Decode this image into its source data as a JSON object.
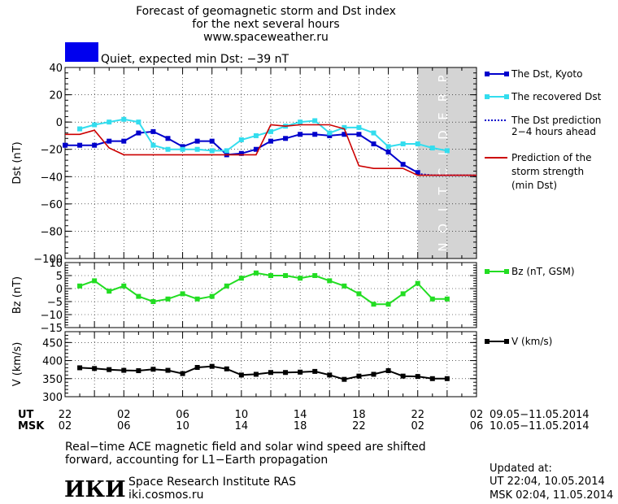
{
  "header": {
    "title_line1": "Forecast of geomagnetic storm and Dst index",
    "title_line2": "for the next several hours",
    "url": "www.spaceweather.ru",
    "status_text": "Quiet, expected min Dst: −39 nT",
    "status_color": "#0000ee"
  },
  "colors": {
    "dst_kyoto": "#0000cc",
    "dst_recovered": "#33ddee",
    "dst_prediction": "#0000cc",
    "storm_strength": "#cc0000",
    "bz": "#22dd22",
    "v": "#000000",
    "prediction_band": "#d4d4d4"
  },
  "prediction_band_label": "PREDICTION",
  "legend": {
    "dst_kyoto": "The Dst, Kyoto",
    "dst_recovered": "The recovered Dst",
    "dst_prediction_1": "The Dst prediction",
    "dst_prediction_2": "2−4 hours ahead",
    "storm_1": "Prediction of the",
    "storm_2": "storm strength",
    "storm_3": "(min Dst)",
    "bz": "Bz (nT, GSM)",
    "v": "V (km/s)"
  },
  "time_axis": {
    "ut_label": "UT",
    "msk_label": "MSK",
    "ut_ticks": [
      "22",
      "02",
      "06",
      "10",
      "14",
      "18",
      "22",
      "02"
    ],
    "msk_ticks": [
      "02",
      "06",
      "10",
      "14",
      "18",
      "22",
      "02",
      "06"
    ],
    "ut_range": "09.05−11.05.2014",
    "msk_range": "10.05−11.05.2014"
  },
  "chart_data": [
    {
      "type": "line",
      "ylabel": "Dst (nT)",
      "ylim": [
        -100,
        40
      ],
      "yticks": [
        "40",
        "20",
        "0",
        "−20",
        "−40",
        "−60",
        "−80",
        "−100"
      ],
      "xlim_hours": [
        0,
        28
      ],
      "prediction_from_hour": 24,
      "series": [
        {
          "name": "The Dst, Kyoto",
          "x": [
            0,
            1,
            2,
            3,
            4,
            5,
            6,
            7,
            8,
            9,
            10,
            11,
            12,
            13,
            14,
            15,
            16,
            17,
            18,
            19,
            20,
            21,
            22,
            23,
            24
          ],
          "y": [
            -17,
            -17,
            -17,
            -14,
            -14,
            -8,
            -7,
            -12,
            -18,
            -14,
            -14,
            -24,
            -23,
            -20,
            -14,
            -12,
            -9,
            -9,
            -10,
            -9,
            -9,
            -16,
            -22,
            -31,
            -37
          ]
        },
        {
          "name": "The recovered Dst",
          "x": [
            1,
            2,
            3,
            4,
            5,
            6,
            7,
            8,
            9,
            10,
            11,
            12,
            13,
            14,
            15,
            16,
            17,
            18,
            19,
            20,
            21,
            22,
            23,
            24,
            25,
            26
          ],
          "y": [
            -5,
            -2,
            0,
            2,
            0,
            -17,
            -20,
            -20,
            -20,
            -21,
            -21,
            -13,
            -10,
            -7,
            -3,
            0,
            1,
            -8,
            -4,
            -4,
            -8,
            -18,
            -16,
            -16,
            -19,
            -21
          ]
        },
        {
          "name": "The Dst prediction 2−4 hours ahead",
          "x": [
            24,
            25,
            26,
            27,
            28
          ],
          "y": [
            -38,
            -39,
            -39,
            -39,
            -39
          ]
        },
        {
          "name": "Prediction of the storm strength (min Dst)",
          "x": [
            0,
            1,
            2,
            3,
            4,
            5,
            6,
            7,
            8,
            9,
            10,
            11,
            12,
            13,
            14,
            15,
            16,
            17,
            18,
            19,
            20,
            21,
            22,
            23,
            24,
            25,
            26,
            27,
            28
          ],
          "y": [
            -9,
            -9,
            -6,
            -19,
            -24,
            -24,
            -24,
            -24,
            -24,
            -24,
            -24,
            -24,
            -24,
            -24,
            -2,
            -3,
            -2,
            -2,
            -2,
            -5,
            -32,
            -34,
            -34,
            -34,
            -39,
            -39,
            -39,
            -39,
            -39
          ]
        }
      ]
    },
    {
      "type": "line",
      "ylabel": "Bz (nT)",
      "ylim": [
        -15,
        10
      ],
      "yticks": [
        "10",
        "5",
        "0",
        "−5",
        "−10",
        "−15"
      ],
      "series": [
        {
          "name": "Bz (nT, GSM)",
          "x": [
            1,
            2,
            3,
            4,
            5,
            6,
            7,
            8,
            9,
            10,
            11,
            12,
            13,
            14,
            15,
            16,
            17,
            18,
            19,
            20,
            21,
            22,
            23,
            24,
            25,
            26
          ],
          "y": [
            1,
            3,
            -1,
            1,
            -3,
            -5,
            -4,
            -2,
            -4,
            -3,
            1,
            4,
            6,
            5,
            5,
            4,
            5,
            3,
            1,
            -2,
            -6,
            -6,
            -2,
            2,
            -4,
            -4
          ]
        }
      ]
    },
    {
      "type": "line",
      "ylabel": "V (km/s)",
      "ylim": [
        300,
        480
      ],
      "yticks": [
        "450",
        "400",
        "350",
        "300"
      ],
      "series": [
        {
          "name": "V (km/s)",
          "x": [
            1,
            2,
            3,
            4,
            5,
            6,
            7,
            8,
            9,
            10,
            11,
            12,
            13,
            14,
            15,
            16,
            17,
            18,
            19,
            20,
            21,
            22,
            23,
            24,
            25,
            26
          ],
          "y": [
            380,
            378,
            375,
            373,
            372,
            376,
            373,
            364,
            381,
            384,
            377,
            360,
            362,
            367,
            367,
            368,
            370,
            360,
            348,
            357,
            362,
            372,
            357,
            356,
            350,
            350
          ]
        }
      ]
    }
  ],
  "footer": {
    "note_line1": "Real−time ACE magnetic field and solar wind speed are shifted",
    "note_line2": "forward, accounting for L1−Earth propagation",
    "logo_text": "ИКИ",
    "institute": "Space Research Institute RAS",
    "site": "iki.cosmos.ru",
    "updated_label": "Updated at:",
    "updated_ut": "UT   22:04, 10.05.2014",
    "updated_msk": "MSK 02:04, 11.05.2014"
  }
}
